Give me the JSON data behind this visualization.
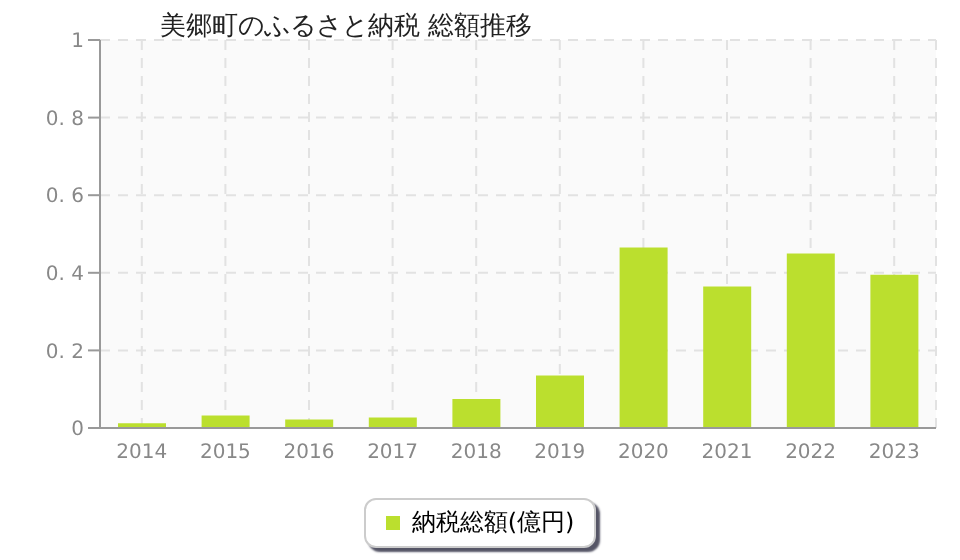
{
  "chart_data": {
    "type": "bar",
    "title": "美郷町のふるさと納税  総額推移",
    "categories": [
      "2014",
      "2015",
      "2016",
      "2017",
      "2018",
      "2019",
      "2020",
      "2021",
      "2022",
      "2023"
    ],
    "series": [
      {
        "name": "納税総額(億円)",
        "color": "#bbdf2e",
        "values": [
          0.012,
          0.032,
          0.022,
          0.027,
          0.075,
          0.135,
          0.465,
          0.365,
          0.45,
          0.395
        ]
      }
    ],
    "ylim": [
      0,
      1
    ],
    "yticks": [
      0,
      0.2,
      0.4,
      0.6,
      0.8,
      1
    ],
    "grid": true,
    "legend": "bottom"
  }
}
